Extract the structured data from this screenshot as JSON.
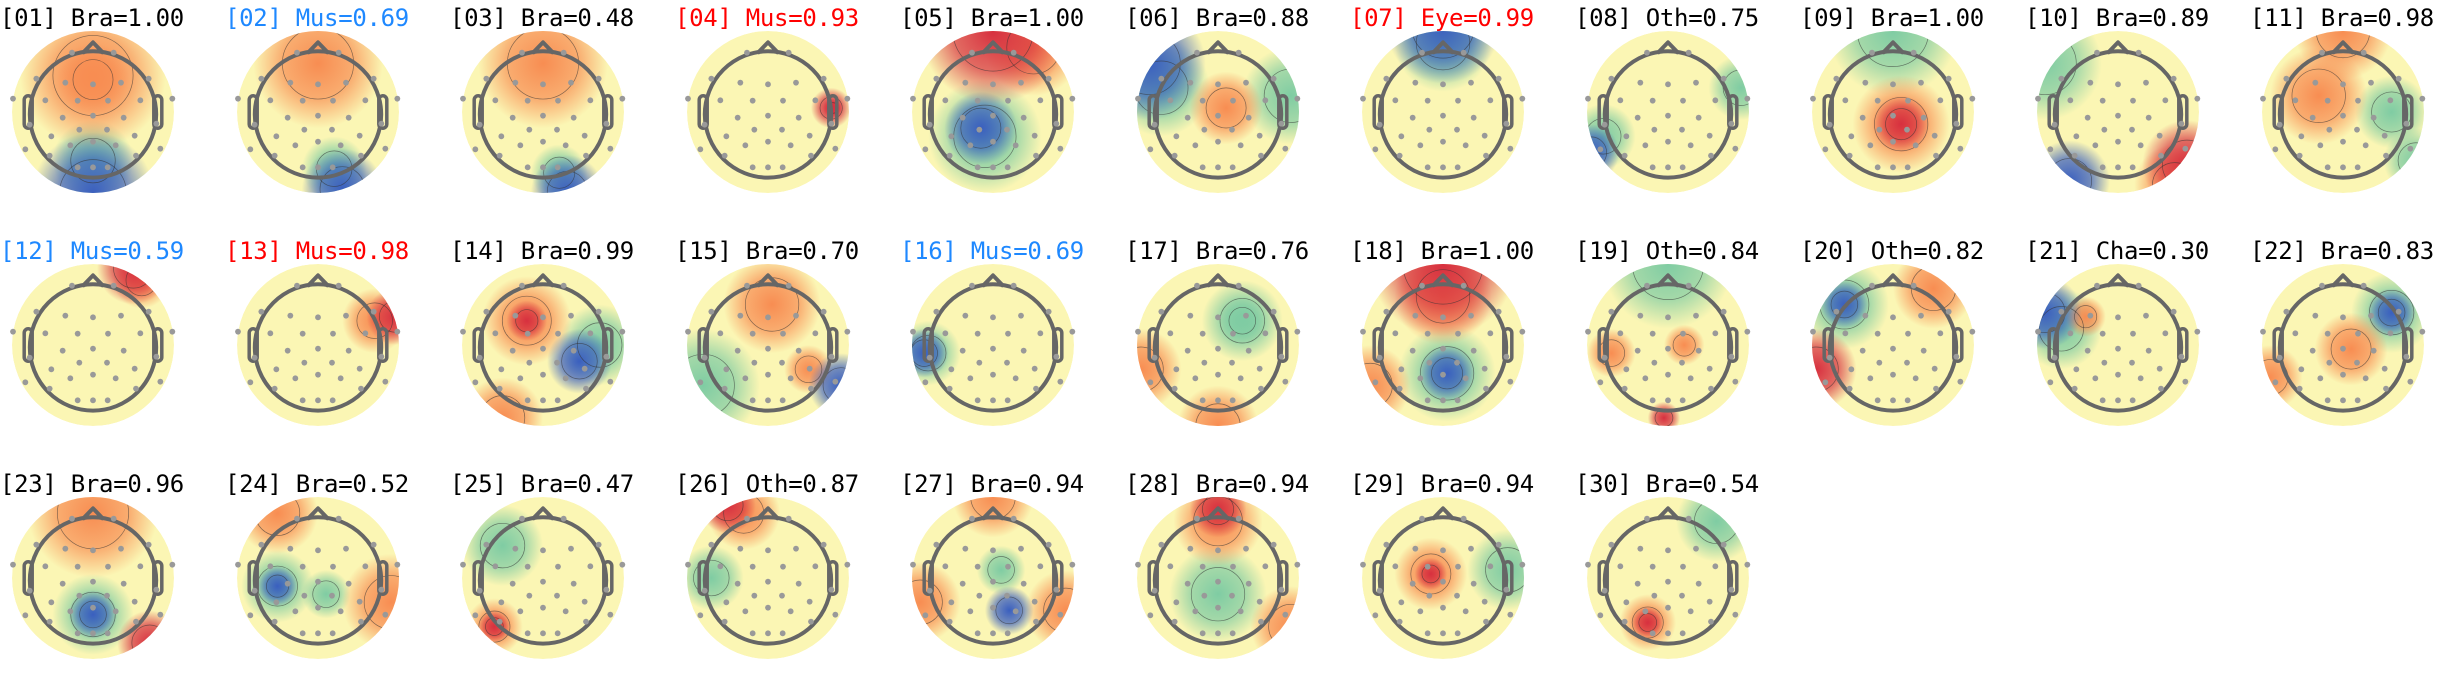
{
  "chart_data": {
    "type": "heatmap",
    "description_kind": "topomap-grid",
    "colormap": [
      "#3a5fbf",
      "#7fcca3",
      "#fbf6b4",
      "#f88d52",
      "#d7303f"
    ],
    "label_colors": {
      "Bra": "#000000",
      "Oth": "#000000",
      "Cha": "#000000",
      "Mus": "#1e88ff",
      "Eye": "#ff0000"
    },
    "components": [
      {
        "index": "01",
        "class": "Bra",
        "probability": "1.00",
        "color": "#000000"
      },
      {
        "index": "02",
        "class": "Mus",
        "probability": "0.69",
        "color": "#1e88ff"
      },
      {
        "index": "03",
        "class": "Bra",
        "probability": "0.48",
        "color": "#000000"
      },
      {
        "index": "04",
        "class": "Mus",
        "probability": "0.93",
        "color": "#ff0000"
      },
      {
        "index": "05",
        "class": "Bra",
        "probability": "1.00",
        "color": "#000000"
      },
      {
        "index": "06",
        "class": "Bra",
        "probability": "0.88",
        "color": "#000000"
      },
      {
        "index": "07",
        "class": "Eye",
        "probability": "0.99",
        "color": "#ff0000"
      },
      {
        "index": "08",
        "class": "Oth",
        "probability": "0.75",
        "color": "#000000"
      },
      {
        "index": "09",
        "class": "Bra",
        "probability": "1.00",
        "color": "#000000"
      },
      {
        "index": "10",
        "class": "Bra",
        "probability": "0.89",
        "color": "#000000"
      },
      {
        "index": "11",
        "class": "Bra",
        "probability": "0.98",
        "color": "#000000"
      },
      {
        "index": "12",
        "class": "Mus",
        "probability": "0.59",
        "color": "#1e88ff"
      },
      {
        "index": "13",
        "class": "Mus",
        "probability": "0.98",
        "color": "#ff0000"
      },
      {
        "index": "14",
        "class": "Bra",
        "probability": "0.99",
        "color": "#000000"
      },
      {
        "index": "15",
        "class": "Bra",
        "probability": "0.70",
        "color": "#000000"
      },
      {
        "index": "16",
        "class": "Mus",
        "probability": "0.69",
        "color": "#1e88ff"
      },
      {
        "index": "17",
        "class": "Bra",
        "probability": "0.76",
        "color": "#000000"
      },
      {
        "index": "18",
        "class": "Bra",
        "probability": "1.00",
        "color": "#000000"
      },
      {
        "index": "19",
        "class": "Oth",
        "probability": "0.84",
        "color": "#000000"
      },
      {
        "index": "20",
        "class": "Oth",
        "probability": "0.82",
        "color": "#000000"
      },
      {
        "index": "21",
        "class": "Cha",
        "probability": "0.30",
        "color": "#000000"
      },
      {
        "index": "22",
        "class": "Bra",
        "probability": "0.83",
        "color": "#000000"
      },
      {
        "index": "23",
        "class": "Bra",
        "probability": "0.96",
        "color": "#000000"
      },
      {
        "index": "24",
        "class": "Bra",
        "probability": "0.52",
        "color": "#000000"
      },
      {
        "index": "25",
        "class": "Bra",
        "probability": "0.47",
        "color": "#000000"
      },
      {
        "index": "26",
        "class": "Oth",
        "probability": "0.87",
        "color": "#000000"
      },
      {
        "index": "27",
        "class": "Bra",
        "probability": "0.94",
        "color": "#000000"
      },
      {
        "index": "28",
        "class": "Bra",
        "probability": "0.94",
        "color": "#000000"
      },
      {
        "index": "29",
        "class": "Bra",
        "probability": "0.94",
        "color": "#000000"
      },
      {
        "index": "30",
        "class": "Bra",
        "probability": "0.54",
        "color": "#000000"
      }
    ]
  }
}
